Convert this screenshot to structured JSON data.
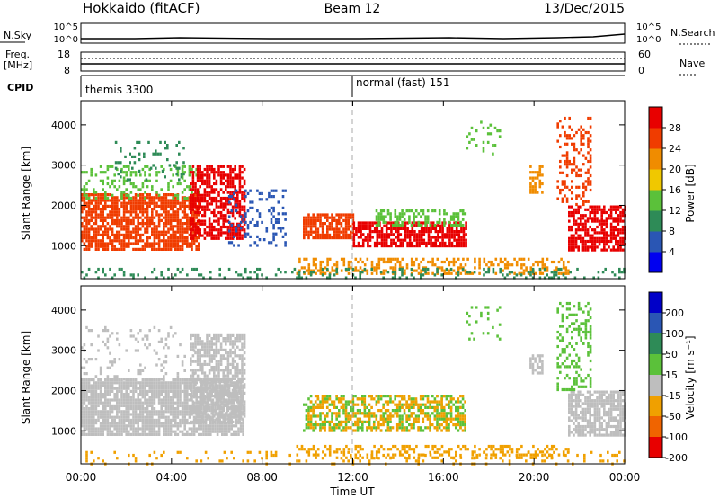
{
  "header": {
    "title": "Hokkaido (fitACF)",
    "beam": "Beam 12",
    "date": "13/Dec/2015"
  },
  "strips": {
    "nsky": {
      "label": "N.Sky",
      "left_ticks": [
        "10^5",
        "10^0"
      ],
      "right_ticks": [
        "10^5",
        "10^0"
      ],
      "right_label": "N.Search"
    },
    "freq": {
      "label_line1": "Freq.",
      "label_line2": "[MHz]",
      "left_ticks": [
        "18",
        "8"
      ],
      "right_ticks": [
        "60",
        "0"
      ],
      "right_label": "Nave"
    },
    "cpid": {
      "label": "CPID",
      "segments": [
        {
          "start": "00:00",
          "text": "themis 3300"
        },
        {
          "start": "12:00",
          "text": "normal (fast) 151"
        }
      ]
    }
  },
  "chart_data": [
    {
      "type": "heatmap",
      "name": "Power",
      "ylabel": "Slant Range [km]",
      "yticks": [
        1000,
        2000,
        3000,
        4000
      ],
      "ylim": [
        180,
        4600
      ],
      "xlim": [
        "00:00",
        "24:00"
      ],
      "colorbar": {
        "label": "Power [dB]",
        "ticks": [
          4,
          8,
          12,
          16,
          20,
          24,
          28
        ],
        "colors": [
          "#0000f0",
          "#2a56b4",
          "#2e8b57",
          "#5bc13a",
          "#f0c800",
          "#f08c00",
          "#f03c00",
          "#e80000"
        ]
      },
      "regions": [
        {
          "t0": 0.0,
          "t1": 5.2,
          "r0": 900,
          "r1": 2300,
          "color": "#f03c00",
          "density": 0.75
        },
        {
          "t0": 0.0,
          "t1": 5.2,
          "r0": 2200,
          "r1": 3000,
          "color": "#5bc13a",
          "density": 0.25
        },
        {
          "t0": 1.5,
          "t1": 4.5,
          "r0": 2600,
          "r1": 3600,
          "color": "#2e8b57",
          "density": 0.12
        },
        {
          "t0": 4.8,
          "t1": 7.2,
          "r0": 1200,
          "r1": 3000,
          "color": "#e80000",
          "density": 0.7
        },
        {
          "t0": 6.5,
          "t1": 9.0,
          "r0": 1000,
          "r1": 2400,
          "color": "#2a56b4",
          "density": 0.2
        },
        {
          "t0": 9.8,
          "t1": 12.0,
          "r0": 1200,
          "r1": 1800,
          "color": "#f03c00",
          "density": 0.8
        },
        {
          "t0": 12.0,
          "t1": 17.0,
          "r0": 1000,
          "r1": 1600,
          "color": "#e80000",
          "density": 0.75
        },
        {
          "t0": 13.0,
          "t1": 17.0,
          "r0": 1500,
          "r1": 1900,
          "color": "#5bc13a",
          "density": 0.45
        },
        {
          "t0": 9.5,
          "t1": 21.5,
          "r0": 300,
          "r1": 700,
          "color": "#f08c00",
          "density": 0.4
        },
        {
          "t0": 0.0,
          "t1": 24.0,
          "r0": 200,
          "r1": 450,
          "color": "#2e8b57",
          "density": 0.2
        },
        {
          "t0": 19.8,
          "t1": 20.4,
          "r0": 2300,
          "r1": 3000,
          "color": "#f08c00",
          "density": 0.6
        },
        {
          "t0": 21.5,
          "t1": 24.0,
          "r0": 900,
          "r1": 2000,
          "color": "#e80000",
          "density": 0.7
        },
        {
          "t0": 21.0,
          "t1": 22.5,
          "r0": 2000,
          "r1": 4200,
          "color": "#f03c00",
          "density": 0.3
        },
        {
          "t0": 17.0,
          "t1": 18.5,
          "r0": 3300,
          "r1": 4100,
          "color": "#5bc13a",
          "density": 0.12
        }
      ]
    },
    {
      "type": "heatmap",
      "name": "Velocity",
      "ylabel": "Slant Range [km]",
      "yticks": [
        1000,
        2000,
        3000,
        4000
      ],
      "ylim": [
        180,
        4600
      ],
      "xlim": [
        "00:00",
        "24:00"
      ],
      "xticks": [
        "00:00",
        "04:00",
        "08:00",
        "12:00",
        "16:00",
        "20:00",
        "00:00"
      ],
      "xlabel": "Time UT",
      "colorbar": {
        "label": "Velocity [m s⁻¹]",
        "ticks": [
          200,
          100,
          50,
          15,
          -15,
          -50,
          -100,
          -200
        ],
        "colors": [
          "#0000c8",
          "#2a56b4",
          "#2e8b57",
          "#5bc13a",
          "#bebebe",
          "#f0a000",
          "#f06400",
          "#e80000"
        ]
      },
      "regions": [
        {
          "t0": 0.0,
          "t1": 7.2,
          "r0": 900,
          "r1": 2300,
          "color": "#bebebe",
          "density": 0.85
        },
        {
          "t0": 4.8,
          "t1": 7.2,
          "r0": 1200,
          "r1": 3400,
          "color": "#bebebe",
          "density": 0.7
        },
        {
          "t0": 0.0,
          "t1": 5.0,
          "r0": 2300,
          "r1": 3600,
          "color": "#bebebe",
          "density": 0.12
        },
        {
          "t0": 9.8,
          "t1": 17.0,
          "r0": 1000,
          "r1": 1900,
          "color": "#5bc13a",
          "density": 0.35
        },
        {
          "t0": 10.0,
          "t1": 17.0,
          "r0": 1000,
          "r1": 1900,
          "color": "#f0a000",
          "density": 0.35
        },
        {
          "t0": 9.5,
          "t1": 21.5,
          "r0": 300,
          "r1": 650,
          "color": "#f0a000",
          "density": 0.35
        },
        {
          "t0": 0.0,
          "t1": 24.0,
          "r0": 200,
          "r1": 500,
          "color": "#f0a000",
          "density": 0.12
        },
        {
          "t0": 19.8,
          "t1": 20.4,
          "r0": 2400,
          "r1": 2900,
          "color": "#bebebe",
          "density": 0.7
        },
        {
          "t0": 21.5,
          "t1": 24.0,
          "r0": 900,
          "r1": 2000,
          "color": "#bebebe",
          "density": 0.75
        },
        {
          "t0": 21.0,
          "t1": 22.5,
          "r0": 2000,
          "r1": 4200,
          "color": "#5bc13a",
          "density": 0.3
        },
        {
          "t0": 17.0,
          "t1": 18.5,
          "r0": 3300,
          "r1": 4100,
          "color": "#5bc13a",
          "density": 0.12
        }
      ]
    }
  ]
}
